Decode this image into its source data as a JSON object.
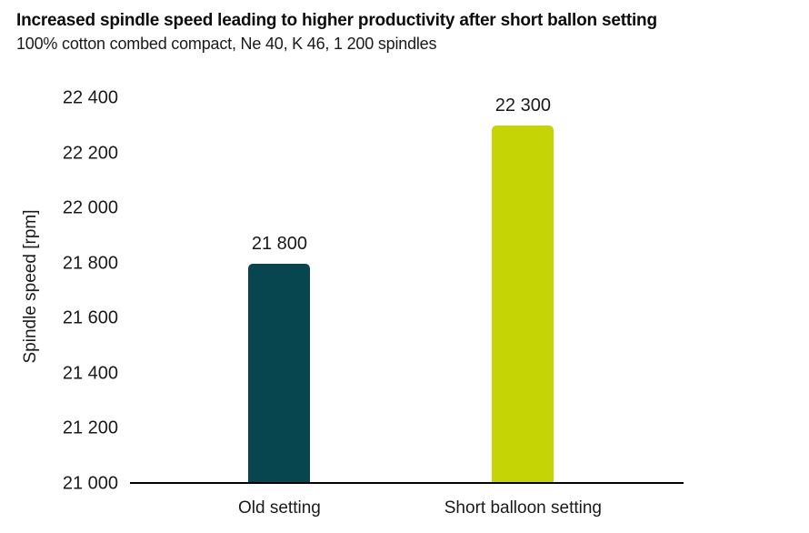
{
  "header": {
    "title": "Increased spindle speed leading to higher productivity after short ballon setting",
    "subtitle": "100% cotton combed compact, Ne 40, K 46, 1 200 spindles"
  },
  "chart_data": {
    "type": "bar",
    "title": "Increased spindle speed leading to higher productivity after short ballon setting",
    "subtitle": "100% cotton combed compact, Ne 40, K 46, 1 200 spindles",
    "categories": [
      "Old setting",
      "Short balloon setting"
    ],
    "values": [
      21800,
      22300
    ],
    "value_labels": [
      "21 800",
      "22 300"
    ],
    "bar_colors": [
      "#07454f",
      "#c4d405"
    ],
    "xlabel": "",
    "ylabel": "Spindle speed [rpm]",
    "ylim": [
      21000,
      22400
    ],
    "ytick_interval": 200,
    "yticks": [
      21000,
      21200,
      21400,
      21600,
      21800,
      22000,
      22200,
      22400
    ],
    "ytick_labels": [
      "21 000",
      "21 200",
      "21 400",
      "21 600",
      "21 800",
      "22 000",
      "22 200",
      "22 400"
    ],
    "grid": false,
    "legend": "none",
    "axis_line_color": "#000000",
    "text_color": "#1a1a1a"
  }
}
